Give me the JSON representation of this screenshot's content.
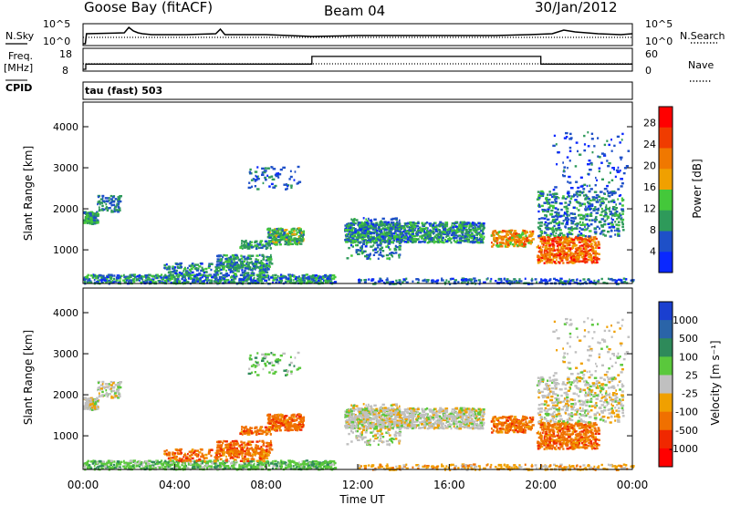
{
  "header": {
    "station": "Goose Bay (fitACF)",
    "beam": "Beam 04",
    "date": "30/Jan/2012"
  },
  "panel_labels": {
    "nsky": "N.Sky",
    "nsearch": "N.Search",
    "freq_line1": "Freq.",
    "freq_line2": "[MHz]",
    "nave": "Nave",
    "cpid": "CPID",
    "cpid_value": "tau (fast) 503"
  },
  "chart_data": [
    {
      "id": "noise",
      "type": "line",
      "left_ticks": [
        "10^5",
        "10^0"
      ],
      "right_ticks": [
        "10^5",
        "10^0"
      ],
      "series": [
        {
          "name": "N.Sky",
          "style": "solid",
          "x_hours": [
            0,
            0.1,
            0.15,
            1.8,
            2.0,
            2.2,
            2.4,
            2.6,
            3.0,
            4.5,
            5.8,
            6.0,
            6.2,
            8.0,
            9.0,
            10.0,
            12.0,
            14.0,
            16.0,
            18.0,
            19.5,
            20.5,
            21.0,
            21.5,
            22.5,
            23.5,
            24.0
          ],
          "y_frac": [
            0.0,
            0.0,
            0.55,
            0.6,
            0.9,
            0.7,
            0.6,
            0.55,
            0.5,
            0.5,
            0.55,
            0.8,
            0.5,
            0.5,
            0.45,
            0.4,
            0.45,
            0.45,
            0.45,
            0.45,
            0.5,
            0.55,
            0.75,
            0.65,
            0.55,
            0.5,
            0.55
          ]
        },
        {
          "name": "N.Search",
          "style": "dotted",
          "x_hours": [
            0,
            24
          ],
          "y_frac": [
            0.35,
            0.35
          ]
        }
      ]
    },
    {
      "id": "freq_nave",
      "type": "line",
      "left_ticks": [
        "18",
        "8"
      ],
      "right_ticks": [
        "60",
        "0"
      ],
      "series": [
        {
          "name": "Freq.",
          "style": "solid",
          "unit": "MHz",
          "x_hours": [
            0,
            0.12,
            0.12,
            10,
            10,
            20,
            20,
            24
          ],
          "y_mhz": [
            8,
            8,
            10.7,
            10.7,
            14.7,
            14.7,
            10.7,
            10.7
          ]
        },
        {
          "name": "Nave",
          "style": "dotted",
          "x_hours": [
            0,
            24
          ],
          "y_nave": [
            17,
            17
          ]
        }
      ]
    },
    {
      "id": "power",
      "type": "heatmap",
      "ylabel": "Slant Range [km]",
      "yticks": [
        1000,
        2000,
        3000,
        4000
      ],
      "ylim": [
        180,
        4600
      ],
      "xlim": [
        0,
        24
      ],
      "colorbar": {
        "label": "Power [dB]",
        "ticks": [
          4,
          8,
          12,
          16,
          20,
          24,
          28
        ],
        "range": [
          0,
          31
        ],
        "colors": [
          "#0a28ff",
          "#1e50c8",
          "#2e9a5a",
          "#44c83a",
          "#f0a000",
          "#f07800",
          "#f03c00",
          "#ff0000"
        ]
      }
    },
    {
      "id": "velocity",
      "type": "heatmap",
      "ylabel": "Slant Range [km]",
      "yticks": [
        1000,
        2000,
        3000,
        4000
      ],
      "ylim": [
        180,
        4600
      ],
      "xlim": [
        0,
        24
      ],
      "xlabel": "Time UT",
      "xticks": [
        "00:00",
        "04:00",
        "08:00",
        "12:00",
        "16:00",
        "20:00",
        "00:00"
      ],
      "colorbar": {
        "label": "Velocity [m s⁻¹]",
        "ticks": [
          "1000",
          "500",
          "100",
          "25",
          "-25",
          "-100",
          "-500",
          "-1000"
        ],
        "colors": [
          "#1a3fd0",
          "#2a64a8",
          "#2e8a5a",
          "#5ac83c",
          "#c0c0c0",
          "#f0a000",
          "#f07000",
          "#f02800",
          "#ff0000"
        ]
      }
    }
  ],
  "scatter_blobs": [
    {
      "t": [
        0.0,
        0.6
      ],
      "r": [
        1650,
        1950
      ],
      "n": 120,
      "pow": [
        0.2,
        0.5
      ],
      "vel": 4
    },
    {
      "t": [
        0.6,
        1.6
      ],
      "r": [
        1950,
        2350
      ],
      "n": 80,
      "pow": [
        0.15,
        0.35
      ],
      "vel": 4
    },
    {
      "t": [
        0.0,
        11.0
      ],
      "r": [
        200,
        420
      ],
      "n": 700,
      "pow": [
        0.05,
        0.5
      ],
      "vel": 3
    },
    {
      "t": [
        3.5,
        8.0
      ],
      "r": [
        400,
        700
      ],
      "n": 220,
      "pow": [
        0.1,
        0.45
      ],
      "vel": 6
    },
    {
      "t": [
        5.8,
        8.2
      ],
      "r": [
        550,
        900
      ],
      "n": 180,
      "pow": [
        0.15,
        0.45
      ],
      "vel": 6
    },
    {
      "t": [
        6.8,
        8.2
      ],
      "r": [
        1050,
        1250
      ],
      "n": 80,
      "pow": [
        0.2,
        0.45
      ],
      "vel": 6
    },
    {
      "t": [
        8.0,
        9.6
      ],
      "r": [
        1150,
        1550
      ],
      "n": 220,
      "pow": [
        0.2,
        0.55
      ],
      "vel": 6
    },
    {
      "t": [
        7.2,
        9.4
      ],
      "r": [
        2500,
        3050
      ],
      "n": 70,
      "pow": [
        0.1,
        0.3
      ],
      "vel": 3
    },
    {
      "t": [
        11.4,
        17.5
      ],
      "r": [
        1200,
        1700
      ],
      "n": 950,
      "pow": [
        0.1,
        0.5
      ],
      "vel": 4
    },
    {
      "t": [
        11.5,
        13.8
      ],
      "r": [
        800,
        1800
      ],
      "n": 250,
      "pow": [
        0.1,
        0.45
      ],
      "vel": 4
    },
    {
      "t": [
        17.8,
        19.6
      ],
      "r": [
        1100,
        1500
      ],
      "n": 200,
      "pow": [
        0.4,
        0.8
      ],
      "vel": 6
    },
    {
      "t": [
        19.8,
        22.5
      ],
      "r": [
        700,
        1350
      ],
      "n": 500,
      "pow": [
        0.5,
        0.95
      ],
      "vel": 6
    },
    {
      "t": [
        19.8,
        23.6
      ],
      "r": [
        1350,
        2450
      ],
      "n": 480,
      "pow": [
        0.1,
        0.45
      ],
      "vel": 4
    },
    {
      "t": [
        20.5,
        23.8
      ],
      "r": [
        2450,
        3900
      ],
      "n": 110,
      "pow": [
        0.05,
        0.3
      ],
      "vel": 4
    },
    {
      "t": [
        12.0,
        24.0
      ],
      "r": [
        190,
        330
      ],
      "n": 260,
      "pow": [
        0.05,
        0.35
      ],
      "vel": 5
    }
  ]
}
